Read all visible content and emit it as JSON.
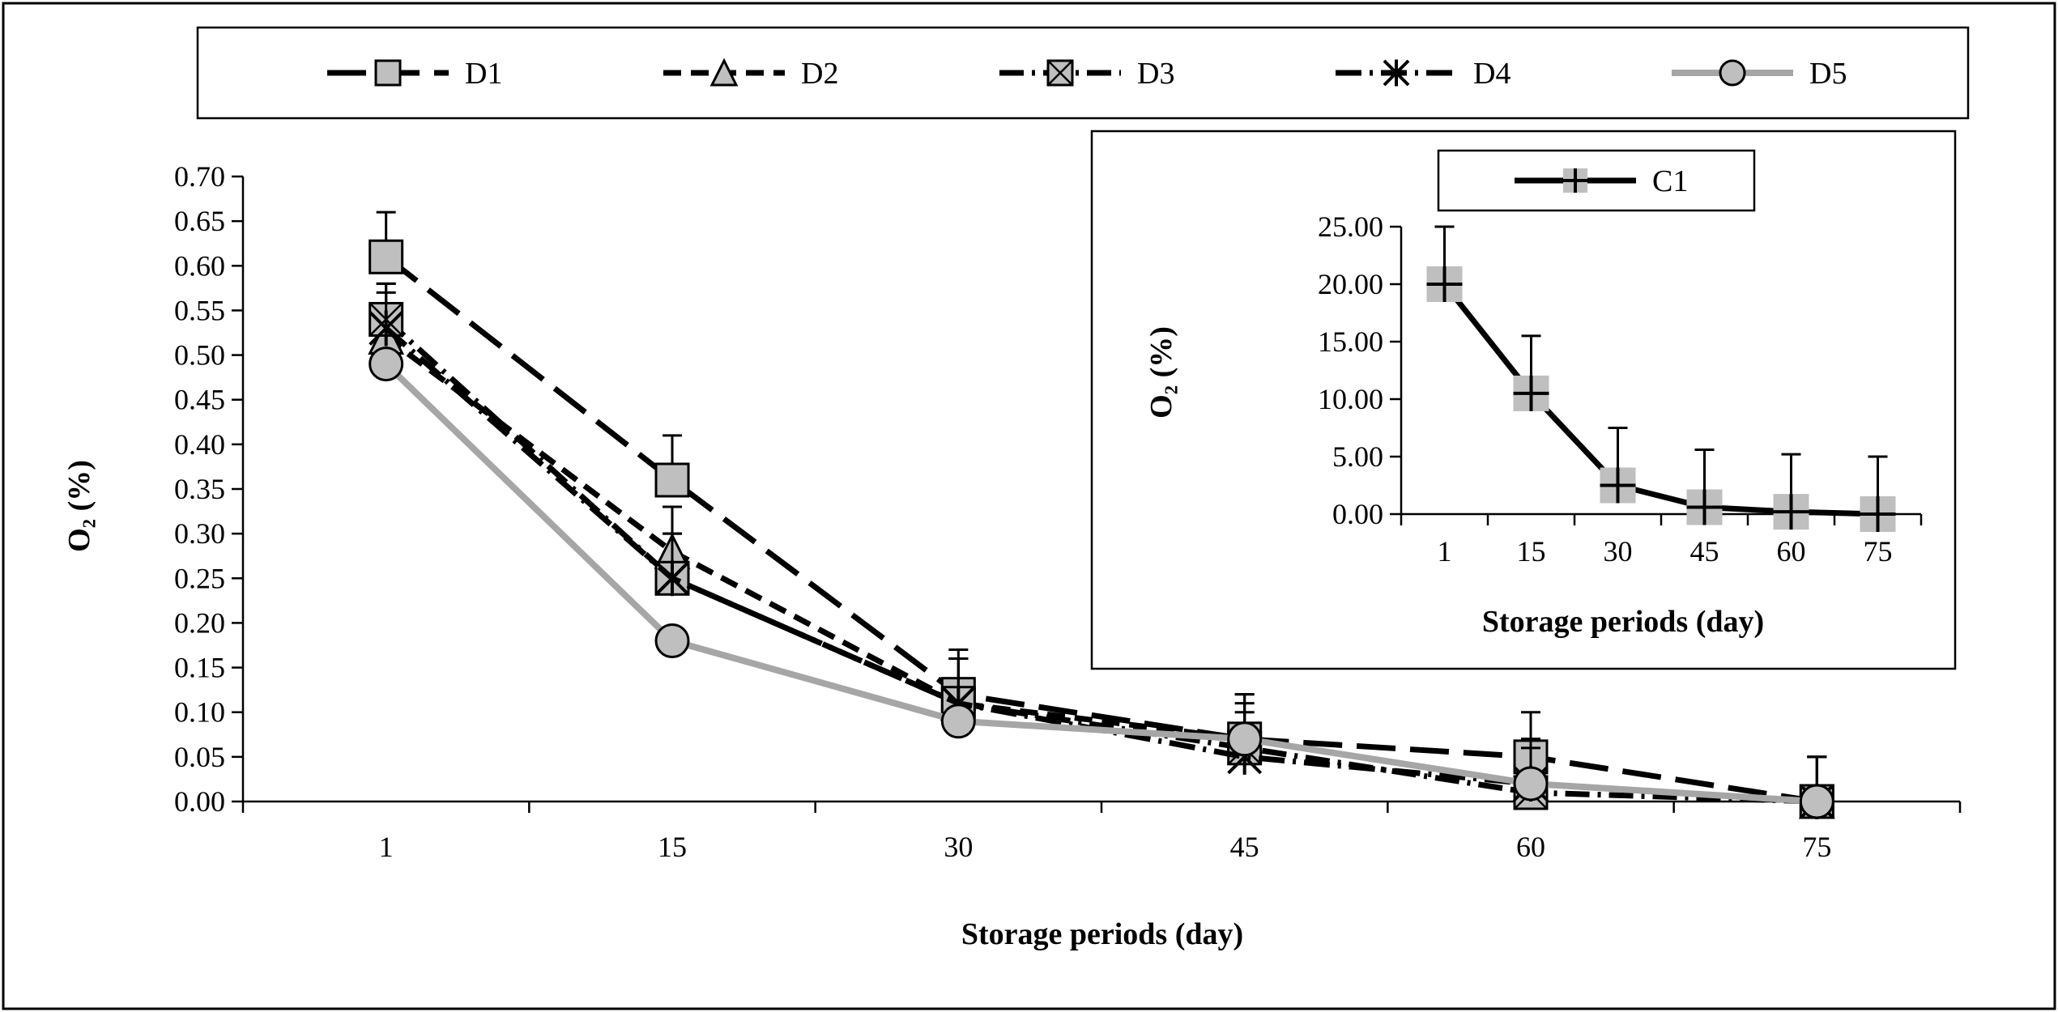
{
  "chart_data": [
    {
      "type": "line",
      "x": [
        1,
        15,
        30,
        45,
        60,
        75
      ],
      "xlabel": "Storage periods (day)",
      "ylabel": "O₂ (%)",
      "ylim": [
        0,
        0.7
      ],
      "y_ticks": [
        "0.00",
        "0.05",
        "0.10",
        "0.15",
        "0.20",
        "0.25",
        "0.30",
        "0.35",
        "0.40",
        "0.45",
        "0.50",
        "0.55",
        "0.60",
        "0.65",
        "0.70"
      ],
      "x_ticks": [
        "1",
        "15",
        "30",
        "45",
        "60",
        "75"
      ],
      "grid": false,
      "legend_position": "top",
      "error_bars": "positive",
      "series": [
        {
          "name": "D1",
          "values": [
            0.61,
            0.36,
            0.12,
            0.07,
            0.05,
            0.0
          ],
          "errors": [
            0.05,
            0.05,
            0.05,
            0.05,
            0.05,
            0.05
          ]
        },
        {
          "name": "D2",
          "values": [
            0.52,
            0.28,
            0.11,
            0.07,
            0.02,
            0.0
          ],
          "errors": [
            0.05,
            0.05,
            0.05,
            0.05,
            0.05,
            0.05
          ]
        },
        {
          "name": "D3",
          "values": [
            0.54,
            0.25,
            0.11,
            0.06,
            0.01,
            0.0
          ],
          "errors": [
            0.04,
            0.05,
            0.05,
            0.05,
            0.05,
            0.05
          ]
        },
        {
          "name": "D4",
          "values": [
            0.53,
            0.25,
            0.11,
            0.05,
            0.02,
            0.0
          ],
          "errors": [
            0.05,
            0.05,
            0.05,
            0.05,
            0.05,
            0.05
          ]
        },
        {
          "name": "D5",
          "values": [
            0.49,
            0.18,
            0.09,
            0.07,
            0.02,
            0.0
          ],
          "errors": [
            0.0,
            0.0,
            0.0,
            0.0,
            0.0,
            0.0
          ]
        }
      ]
    },
    {
      "type": "line",
      "x": [
        1,
        15,
        30,
        45,
        60,
        75
      ],
      "xlabel": "Storage periods (day)",
      "ylabel": "O₂ (%)",
      "ylim": [
        0,
        25
      ],
      "y_ticks": [
        "0.00",
        "5.00",
        "10.00",
        "15.00",
        "20.00",
        "25.00"
      ],
      "x_ticks": [
        "1",
        "15",
        "30",
        "45",
        "60",
        "75"
      ],
      "grid": false,
      "legend_position": "top",
      "error_bars": "positive",
      "series": [
        {
          "name": "C1",
          "values": [
            20.0,
            10.5,
            2.5,
            0.6,
            0.2,
            0.0
          ],
          "errors": [
            5,
            5,
            5,
            5,
            5,
            5
          ]
        }
      ]
    }
  ],
  "colors": {
    "line": "#000000",
    "marker_fill": "#bfbfbf",
    "d5_line": "#a6a6a6",
    "frame": "#000000"
  },
  "markers": {
    "D1": "square",
    "D2": "triangle",
    "D3": "x-square",
    "D4": "asterisk",
    "D5": "circle",
    "C1": "plus-square"
  }
}
